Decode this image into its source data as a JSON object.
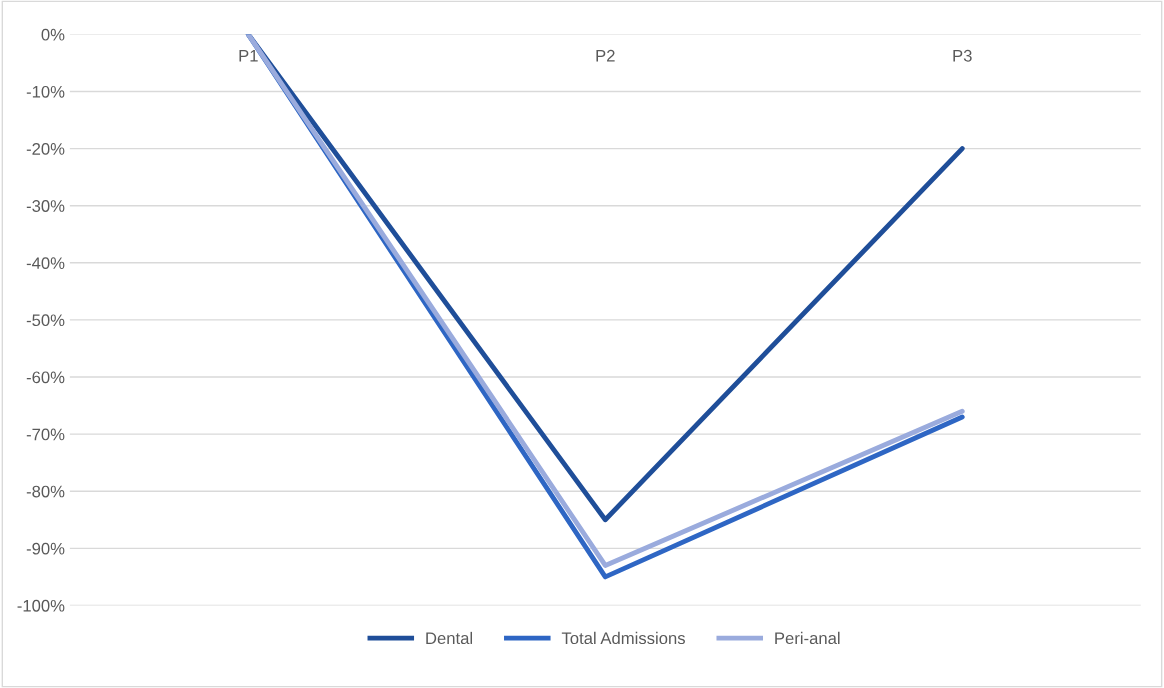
{
  "chart_data": {
    "type": "line",
    "categories": [
      "P1",
      "P2",
      "P3"
    ],
    "series": [
      {
        "name": "Dental",
        "color": "#1f4e99",
        "values": [
          0,
          -85,
          -20
        ]
      },
      {
        "name": "Total Admissions",
        "color": "#2e66c4",
        "values": [
          0,
          -95,
          -67
        ]
      },
      {
        "name": "Peri-anal",
        "color": "#9aabdd",
        "values": [
          0,
          -93,
          -66
        ]
      }
    ],
    "ylim": [
      -100,
      0
    ],
    "yticks": [
      {
        "value": 0,
        "label": "0%"
      },
      {
        "value": -10,
        "label": "-10%"
      },
      {
        "value": -20,
        "label": "-20%"
      },
      {
        "value": -30,
        "label": "-30%"
      },
      {
        "value": -40,
        "label": "-40%"
      },
      {
        "value": -50,
        "label": "-50%"
      },
      {
        "value": -60,
        "label": "-60%"
      },
      {
        "value": -70,
        "label": "-70%"
      },
      {
        "value": -80,
        "label": "-80%"
      },
      {
        "value": -90,
        "label": "-90%"
      },
      {
        "value": -100,
        "label": "-100%"
      }
    ],
    "grid": "y",
    "legend": "bottom",
    "marker": "none",
    "line_style": "solid"
  }
}
